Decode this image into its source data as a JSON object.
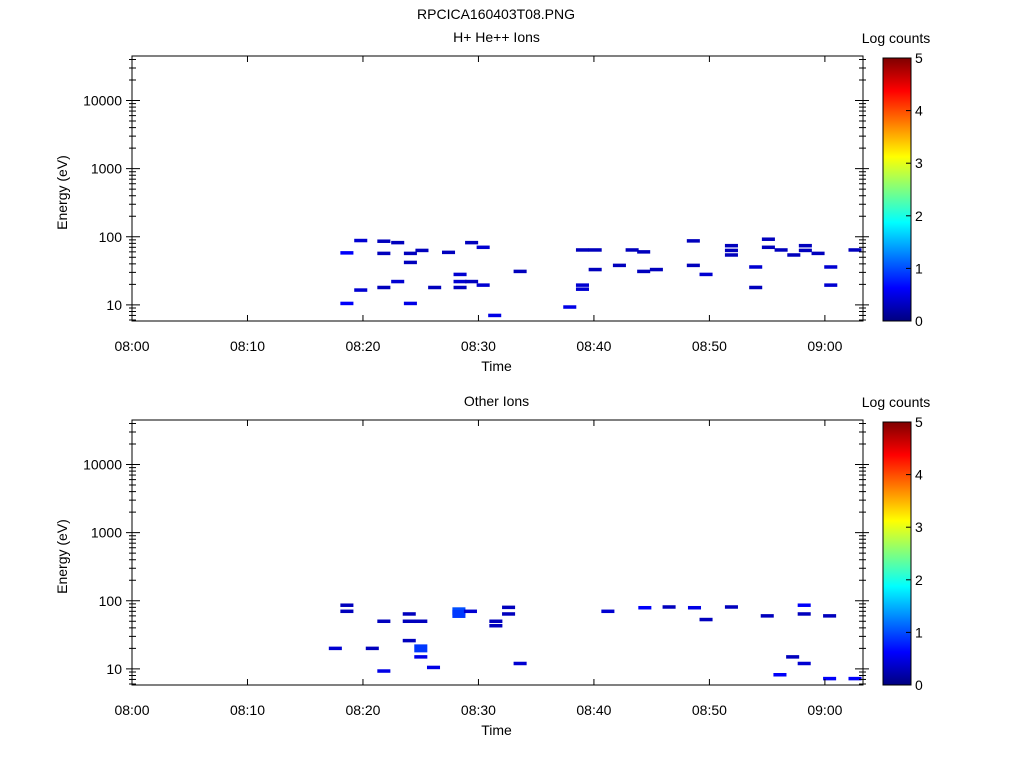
{
  "title": "RPCICA160403T08.PNG",
  "colorbar": {
    "label": "Log counts",
    "ticks": [
      "0",
      "1",
      "2",
      "3",
      "4",
      "5"
    ],
    "stops": [
      "#00007f",
      "#0000ff",
      "#007fff",
      "#00ffff",
      "#7fff7f",
      "#ffff00",
      "#ff7f00",
      "#ff0000",
      "#7f0000"
    ]
  },
  "chart_data": [
    {
      "type": "heatmap",
      "title": "H+ He++ Ions",
      "xlabel": "Time",
      "ylabel": "Energy (eV)",
      "x_ticks": [
        "08:00",
        "08:10",
        "08:20",
        "08:30",
        "08:40",
        "08:50",
        "09:00"
      ],
      "y_ticks": [
        "10",
        "100",
        "1000",
        "10000"
      ],
      "xlim_minutes": [
        0,
        63.3
      ],
      "ylim": [
        5.8,
        45000
      ],
      "yscale": "log",
      "points": [
        {
          "t": 18.5,
          "e": 58,
          "v": 0.6
        },
        {
          "t": 18.5,
          "e": 10.5,
          "v": 0.6
        },
        {
          "t": 19.7,
          "e": 88,
          "v": 0.4
        },
        {
          "t": 19.7,
          "e": 16.5,
          "v": 0.4
        },
        {
          "t": 21.7,
          "e": 86,
          "v": 0.3
        },
        {
          "t": 21.7,
          "e": 57,
          "v": 0.3
        },
        {
          "t": 21.7,
          "e": 18,
          "v": 0.3
        },
        {
          "t": 22.9,
          "e": 82,
          "v": 0.3
        },
        {
          "t": 22.9,
          "e": 22,
          "v": 0.4
        },
        {
          "t": 24.0,
          "e": 57,
          "v": 0.3
        },
        {
          "t": 24.0,
          "e": 42,
          "v": 0.3
        },
        {
          "t": 24.0,
          "e": 10.5,
          "v": 0.5
        },
        {
          "t": 25.0,
          "e": 63,
          "v": 0.3
        },
        {
          "t": 26.1,
          "e": 18,
          "v": 0.3
        },
        {
          "t": 27.3,
          "e": 59,
          "v": 0.3
        },
        {
          "t": 28.3,
          "e": 28,
          "v": 0.4
        },
        {
          "t": 28.3,
          "e": 22,
          "v": 0.4
        },
        {
          "t": 28.3,
          "e": 18,
          "v": 0.3
        },
        {
          "t": 29.3,
          "e": 82,
          "v": 0.3
        },
        {
          "t": 29.3,
          "e": 22,
          "v": 0.3
        },
        {
          "t": 30.3,
          "e": 70,
          "v": 0.4
        },
        {
          "t": 30.3,
          "e": 19.5,
          "v": 0.4
        },
        {
          "t": 31.3,
          "e": 7,
          "v": 0.5
        },
        {
          "t": 33.5,
          "e": 31,
          "v": 0.3
        },
        {
          "t": 37.8,
          "e": 9.3,
          "v": 0.5
        },
        {
          "t": 38.9,
          "e": 64,
          "v": 0.3
        },
        {
          "t": 38.9,
          "e": 19.5,
          "v": 0.4
        },
        {
          "t": 38.9,
          "e": 17,
          "v": 0.4
        },
        {
          "t": 40.0,
          "e": 64,
          "v": 0.3
        },
        {
          "t": 40.0,
          "e": 33,
          "v": 0.3
        },
        {
          "t": 42.1,
          "e": 38,
          "v": 0.3
        },
        {
          "t": 43.2,
          "e": 64,
          "v": 0.3
        },
        {
          "t": 44.2,
          "e": 60,
          "v": 0.3
        },
        {
          "t": 44.2,
          "e": 31,
          "v": 0.3
        },
        {
          "t": 45.3,
          "e": 33,
          "v": 0.3
        },
        {
          "t": 48.5,
          "e": 87,
          "v": 0.3
        },
        {
          "t": 48.5,
          "e": 38,
          "v": 0.3
        },
        {
          "t": 49.6,
          "e": 28,
          "v": 0.4
        },
        {
          "t": 51.8,
          "e": 74,
          "v": 0.3
        },
        {
          "t": 51.8,
          "e": 63,
          "v": 0.3
        },
        {
          "t": 51.8,
          "e": 54,
          "v": 0.3
        },
        {
          "t": 53.9,
          "e": 36,
          "v": 0.4
        },
        {
          "t": 53.9,
          "e": 18,
          "v": 0.3
        },
        {
          "t": 55.0,
          "e": 92,
          "v": 0.3
        },
        {
          "t": 55.0,
          "e": 70,
          "v": 0.3
        },
        {
          "t": 56.1,
          "e": 64,
          "v": 0.3
        },
        {
          "t": 57.2,
          "e": 54,
          "v": 0.3
        },
        {
          "t": 58.2,
          "e": 74,
          "v": 0.3
        },
        {
          "t": 58.2,
          "e": 63,
          "v": 0.3
        },
        {
          "t": 59.3,
          "e": 57,
          "v": 0.3
        },
        {
          "t": 60.4,
          "e": 36,
          "v": 0.4
        },
        {
          "t": 60.4,
          "e": 19.5,
          "v": 0.4
        },
        {
          "t": 62.5,
          "e": 64,
          "v": 0.3
        }
      ]
    },
    {
      "type": "heatmap",
      "title": "Other Ions",
      "xlabel": "Time",
      "ylabel": "Energy (eV)",
      "x_ticks": [
        "08:00",
        "08:10",
        "08:20",
        "08:30",
        "08:40",
        "08:50",
        "09:00"
      ],
      "y_ticks": [
        "10",
        "100",
        "1000",
        "10000"
      ],
      "xlim_minutes": [
        0,
        63.3
      ],
      "ylim": [
        5.8,
        45000
      ],
      "yscale": "log",
      "points": [
        {
          "t": 17.5,
          "e": 20,
          "v": 0.4
        },
        {
          "t": 18.5,
          "e": 86,
          "v": 0.3
        },
        {
          "t": 18.5,
          "e": 70,
          "v": 0.3
        },
        {
          "t": 20.7,
          "e": 20,
          "v": 0.3
        },
        {
          "t": 21.7,
          "e": 50,
          "v": 0.3
        },
        {
          "t": 21.7,
          "e": 9.3,
          "v": 0.5
        },
        {
          "t": 23.9,
          "e": 64,
          "v": 0.3
        },
        {
          "t": 23.9,
          "e": 50,
          "v": 0.3
        },
        {
          "t": 23.9,
          "e": 26,
          "v": 0.3
        },
        {
          "t": 24.9,
          "e": 50,
          "v": 0.3
        },
        {
          "t": 24.9,
          "e": 20,
          "v": 0.9
        },
        {
          "t": 24.9,
          "e": 15,
          "v": 0.5
        },
        {
          "t": 26.0,
          "e": 10.5,
          "v": 0.5
        },
        {
          "t": 28.2,
          "e": 70,
          "v": 1.0
        },
        {
          "t": 28.2,
          "e": 64,
          "v": 0.9
        },
        {
          "t": 29.2,
          "e": 70,
          "v": 0.4
        },
        {
          "t": 31.4,
          "e": 50,
          "v": 0.3
        },
        {
          "t": 31.4,
          "e": 43,
          "v": 0.3
        },
        {
          "t": 32.5,
          "e": 80,
          "v": 0.3
        },
        {
          "t": 32.5,
          "e": 64,
          "v": 0.3
        },
        {
          "t": 33.5,
          "e": 12,
          "v": 0.4
        },
        {
          "t": 41.1,
          "e": 70,
          "v": 0.4
        },
        {
          "t": 44.3,
          "e": 79,
          "v": 0.6
        },
        {
          "t": 46.4,
          "e": 81,
          "v": 0.3
        },
        {
          "t": 48.6,
          "e": 79,
          "v": 0.5
        },
        {
          "t": 49.6,
          "e": 53,
          "v": 0.3
        },
        {
          "t": 51.8,
          "e": 81,
          "v": 0.3
        },
        {
          "t": 54.9,
          "e": 60,
          "v": 0.3
        },
        {
          "t": 56.0,
          "e": 8.2,
          "v": 0.6
        },
        {
          "t": 57.1,
          "e": 15,
          "v": 0.3
        },
        {
          "t": 58.1,
          "e": 86,
          "v": 0.6
        },
        {
          "t": 58.1,
          "e": 64,
          "v": 0.3
        },
        {
          "t": 58.1,
          "e": 12,
          "v": 0.4
        },
        {
          "t": 60.3,
          "e": 60,
          "v": 0.3
        },
        {
          "t": 60.3,
          "e": 7.2,
          "v": 0.6
        },
        {
          "t": 62.5,
          "e": 7.2,
          "v": 0.6
        }
      ]
    }
  ]
}
